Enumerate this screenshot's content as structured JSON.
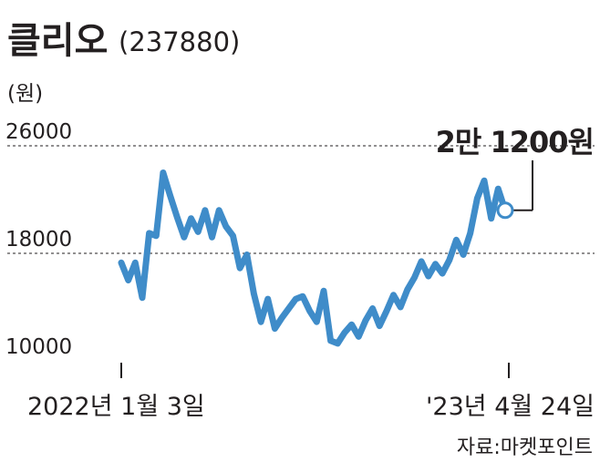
{
  "header": {
    "title": "클리오",
    "code": "(237880)"
  },
  "unit_label": "(원)",
  "footer": {
    "source": "자료:마켓포인트"
  },
  "colors": {
    "line": "#3f8cc9",
    "text": "#231f20",
    "grid": "#231f20",
    "background": "#ffffff"
  },
  "chart_data": {
    "type": "line",
    "title": "클리오(237880)",
    "ylabel": "(원)",
    "ylim": [
      10000,
      26000
    ],
    "yticks": [
      10000,
      18000,
      26000
    ],
    "ytick_labels": [
      "10000",
      "18000",
      "26000"
    ],
    "grid": "dashed at 18000 and 26000",
    "x_start_label": "2022년 1월 3일",
    "x_end_label": "'23년 4월 24일",
    "annotation": {
      "text": "2만 1200원",
      "value": 21200
    },
    "series": [
      {
        "values": [
          17300,
          16000,
          17300,
          14700,
          19500,
          19300,
          24000,
          22300,
          20700,
          19200,
          20600,
          19600,
          21200,
          19200,
          21200,
          20000,
          19300,
          16900,
          17900,
          15000,
          12900,
          14600,
          12400,
          13200,
          13900,
          14600,
          14800,
          13700,
          12900,
          15200,
          11500,
          11300,
          12100,
          12700,
          11800,
          13000,
          13900,
          12600,
          13700,
          14900,
          14000,
          15300,
          16200,
          17400,
          16300,
          17200,
          16500,
          17500,
          19000,
          17900,
          19500,
          22100,
          23400,
          20600,
          22800,
          21200
        ]
      }
    ]
  }
}
